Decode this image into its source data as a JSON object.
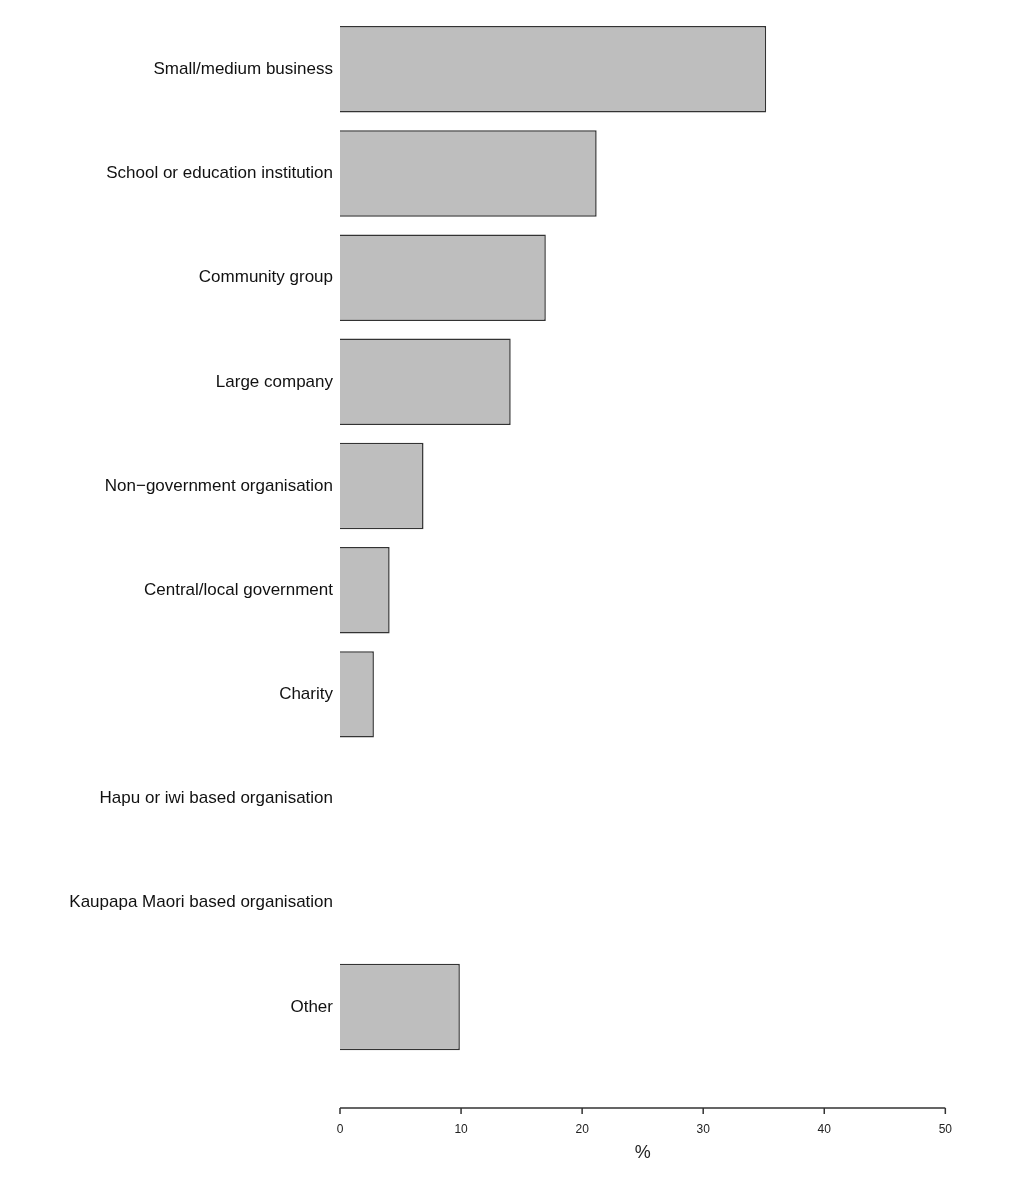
{
  "chart_data": {
    "type": "bar",
    "orientation": "horizontal",
    "xlabel": "%",
    "categories": [
      "Small/medium business",
      "School or education institution",
      "Community group",
      "Large company",
      "Non−government organisation",
      "Central/local government",
      "Charity",
      "Hapu or iwi based organisation",
      "Kaupapa Maori based organisation",
      "Other"
    ],
    "values": [
      35.2,
      21.2,
      17.0,
      14.1,
      6.9,
      4.1,
      2.8,
      0,
      0,
      9.9
    ],
    "color": "#bebebe",
    "xlim": [
      0,
      50
    ],
    "xticks": [
      0,
      10,
      20,
      30,
      40,
      50
    ],
    "grid": false,
    "legend": false
  }
}
